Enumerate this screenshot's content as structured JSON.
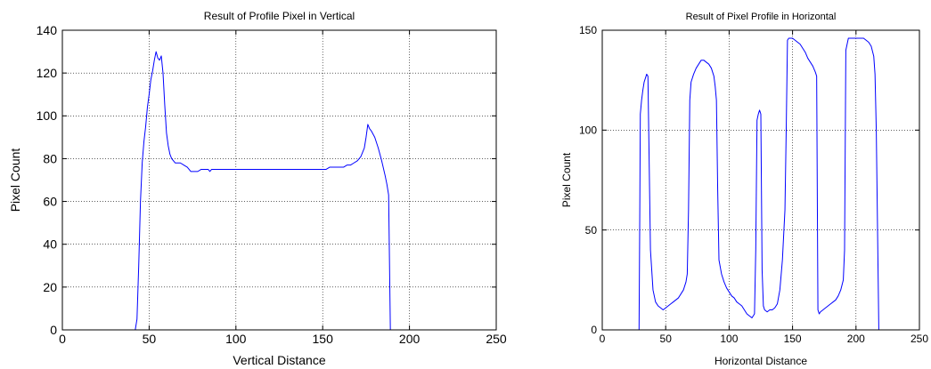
{
  "chart_data": [
    {
      "type": "line",
      "title": "Result of Profile Pixel in Vertical",
      "xlabel": "Vertical Distance",
      "ylabel": "Pixel Count",
      "xlim": [
        0,
        250
      ],
      "ylim": [
        0,
        140
      ],
      "xticks": [
        0,
        50,
        100,
        150,
        200,
        250
      ],
      "yticks": [
        0,
        20,
        40,
        60,
        80,
        100,
        120,
        140
      ],
      "grid": true,
      "line_color": "#0000ff",
      "series": [
        {
          "x": [
            0,
            42,
            43,
            44,
            45,
            46,
            47,
            48,
            49,
            50,
            51,
            52,
            53,
            54,
            55,
            56,
            57,
            58,
            59,
            60,
            61,
            62,
            63,
            64,
            65,
            66,
            68,
            70,
            72,
            74,
            76,
            78,
            80,
            82,
            84,
            85,
            86,
            88,
            100,
            120,
            140,
            150,
            152,
            154,
            156,
            158,
            160,
            162,
            164,
            166,
            168,
            170,
            172,
            174,
            175,
            176,
            177,
            178,
            180,
            182,
            184,
            186,
            187,
            188,
            189,
            190,
            200,
            225
          ],
          "y": [
            0,
            0,
            5,
            30,
            60,
            78,
            88,
            95,
            104,
            110,
            117,
            121,
            126,
            130,
            127,
            126,
            128,
            120,
            105,
            92,
            86,
            82,
            80,
            79,
            78,
            78,
            78,
            77,
            76,
            74,
            74,
            74,
            75,
            75,
            75,
            74,
            75,
            75,
            75,
            75,
            75,
            75,
            75,
            76,
            76,
            76,
            76,
            76,
            77,
            77,
            78,
            79,
            81,
            85,
            90,
            96,
            94,
            93,
            90,
            85,
            79,
            72,
            68,
            63,
            0,
            0,
            0,
            0
          ]
        }
      ]
    },
    {
      "type": "line",
      "title": "Result of Pixel Profile in Horizontal",
      "xlabel": "Horizontal Distance",
      "ylabel": "Pixel Count",
      "xlim": [
        0,
        250
      ],
      "ylim": [
        0,
        150
      ],
      "xticks": [
        0,
        50,
        100,
        150,
        200,
        250
      ],
      "yticks": [
        0,
        50,
        100,
        150
      ],
      "grid": true,
      "line_color": "#0000ff",
      "series": [
        {
          "x": [
            0,
            29,
            29.5,
            30,
            31,
            32,
            33,
            34,
            35,
            36,
            38,
            40,
            42,
            44,
            46,
            48,
            50,
            52,
            54,
            56,
            58,
            60,
            62,
            64,
            66,
            67,
            68,
            69,
            70,
            72,
            74,
            76,
            78,
            80,
            82,
            84,
            86,
            88,
            89,
            90,
            91,
            92,
            94,
            96,
            98,
            100,
            102,
            104,
            106,
            108,
            110,
            112,
            114,
            116,
            118,
            120,
            121,
            122,
            123,
            124,
            125,
            126,
            127,
            128,
            130,
            132,
            134,
            136,
            138,
            140,
            142,
            144,
            145,
            146,
            147,
            148,
            150,
            152,
            154,
            156,
            158,
            160,
            162,
            164,
            166,
            168,
            169,
            170,
            171,
            172,
            174,
            176,
            178,
            180,
            182,
            184,
            186,
            188,
            190,
            191,
            192,
            194,
            196,
            198,
            200,
            202,
            204,
            206,
            208,
            210,
            212,
            214,
            215,
            216,
            217,
            218,
            220,
            230,
            250
          ],
          "y": [
            0,
            0,
            50,
            108,
            115,
            120,
            124,
            126,
            128,
            127,
            40,
            20,
            14,
            12,
            11,
            10,
            11,
            12,
            13,
            14,
            15,
            16,
            18,
            20,
            24,
            28,
            60,
            115,
            124,
            128,
            131,
            133,
            135,
            135,
            134,
            133,
            131,
            127,
            122,
            115,
            70,
            35,
            28,
            24,
            21,
            19,
            17,
            16,
            14,
            13,
            12,
            10,
            8,
            7,
            6,
            8,
            40,
            105,
            108,
            110,
            108,
            30,
            12,
            10,
            9,
            10,
            10,
            11,
            13,
            20,
            35,
            60,
            100,
            145,
            146,
            146,
            146,
            145,
            144,
            143,
            141,
            139,
            136,
            134,
            132,
            129,
            127,
            10,
            8,
            9,
            10,
            11,
            12,
            13,
            14,
            15,
            17,
            20,
            25,
            40,
            140,
            146,
            146,
            146,
            146,
            146,
            146,
            146,
            145,
            144,
            142,
            137,
            128,
            100,
            50,
            0,
            0,
            0,
            0
          ]
        }
      ]
    }
  ]
}
